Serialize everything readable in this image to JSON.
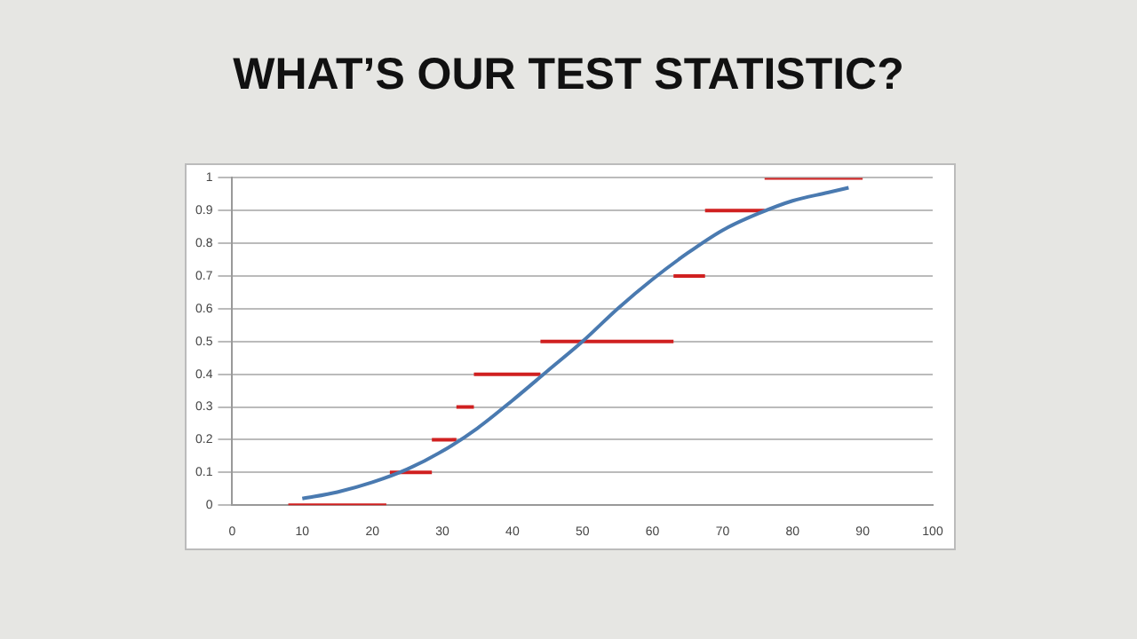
{
  "chart_data": {
    "type": "line",
    "title": "WHAT’S OUR TEST STATISTIC?",
    "xlim": [
      0,
      100
    ],
    "xticks": [
      0,
      10,
      20,
      30,
      40,
      50,
      60,
      70,
      80,
      90,
      100
    ],
    "ylim": [
      0,
      1
    ],
    "yticks": [
      0,
      0.1,
      0.2,
      0.3,
      0.4,
      0.5,
      0.6,
      0.7,
      0.8,
      0.9,
      1
    ],
    "grid": "y",
    "legend": false,
    "marker": "none",
    "series": [
      {
        "color": "#4a7ab0",
        "x": [
          10,
          15,
          20,
          25,
          30,
          35,
          40,
          45,
          50,
          55,
          60,
          65,
          70,
          75,
          80,
          85,
          88
        ],
        "values": [
          0.02,
          0.04,
          0.07,
          0.11,
          0.165,
          0.235,
          0.32,
          0.41,
          0.5,
          0.6,
          0.69,
          0.77,
          0.84,
          0.89,
          0.93,
          0.955,
          0.97
        ]
      },
      {
        "color": "#d02020",
        "x": [
          8,
          22
        ],
        "values": [
          0,
          0
        ]
      },
      {
        "color": "#d02020",
        "x": [
          22.5,
          28.5
        ],
        "values": [
          0.1,
          0.1
        ]
      },
      {
        "color": "#d02020",
        "x": [
          28.5,
          32
        ],
        "values": [
          0.2,
          0.2
        ]
      },
      {
        "color": "#d02020",
        "x": [
          32,
          34.5
        ],
        "values": [
          0.3,
          0.3
        ]
      },
      {
        "color": "#d02020",
        "x": [
          34.5,
          44
        ],
        "values": [
          0.4,
          0.4
        ]
      },
      {
        "color": "#d02020",
        "x": [
          44,
          63
        ],
        "values": [
          0.5,
          0.5
        ]
      },
      {
        "color": "#d02020",
        "x": [
          63,
          67.5
        ],
        "values": [
          0.7,
          0.7
        ]
      },
      {
        "color": "#d02020",
        "x": [
          67.5,
          76
        ],
        "values": [
          0.9,
          0.9
        ]
      },
      {
        "color": "#d02020",
        "x": [
          76,
          90
        ],
        "values": [
          1,
          1
        ]
      }
    ]
  }
}
